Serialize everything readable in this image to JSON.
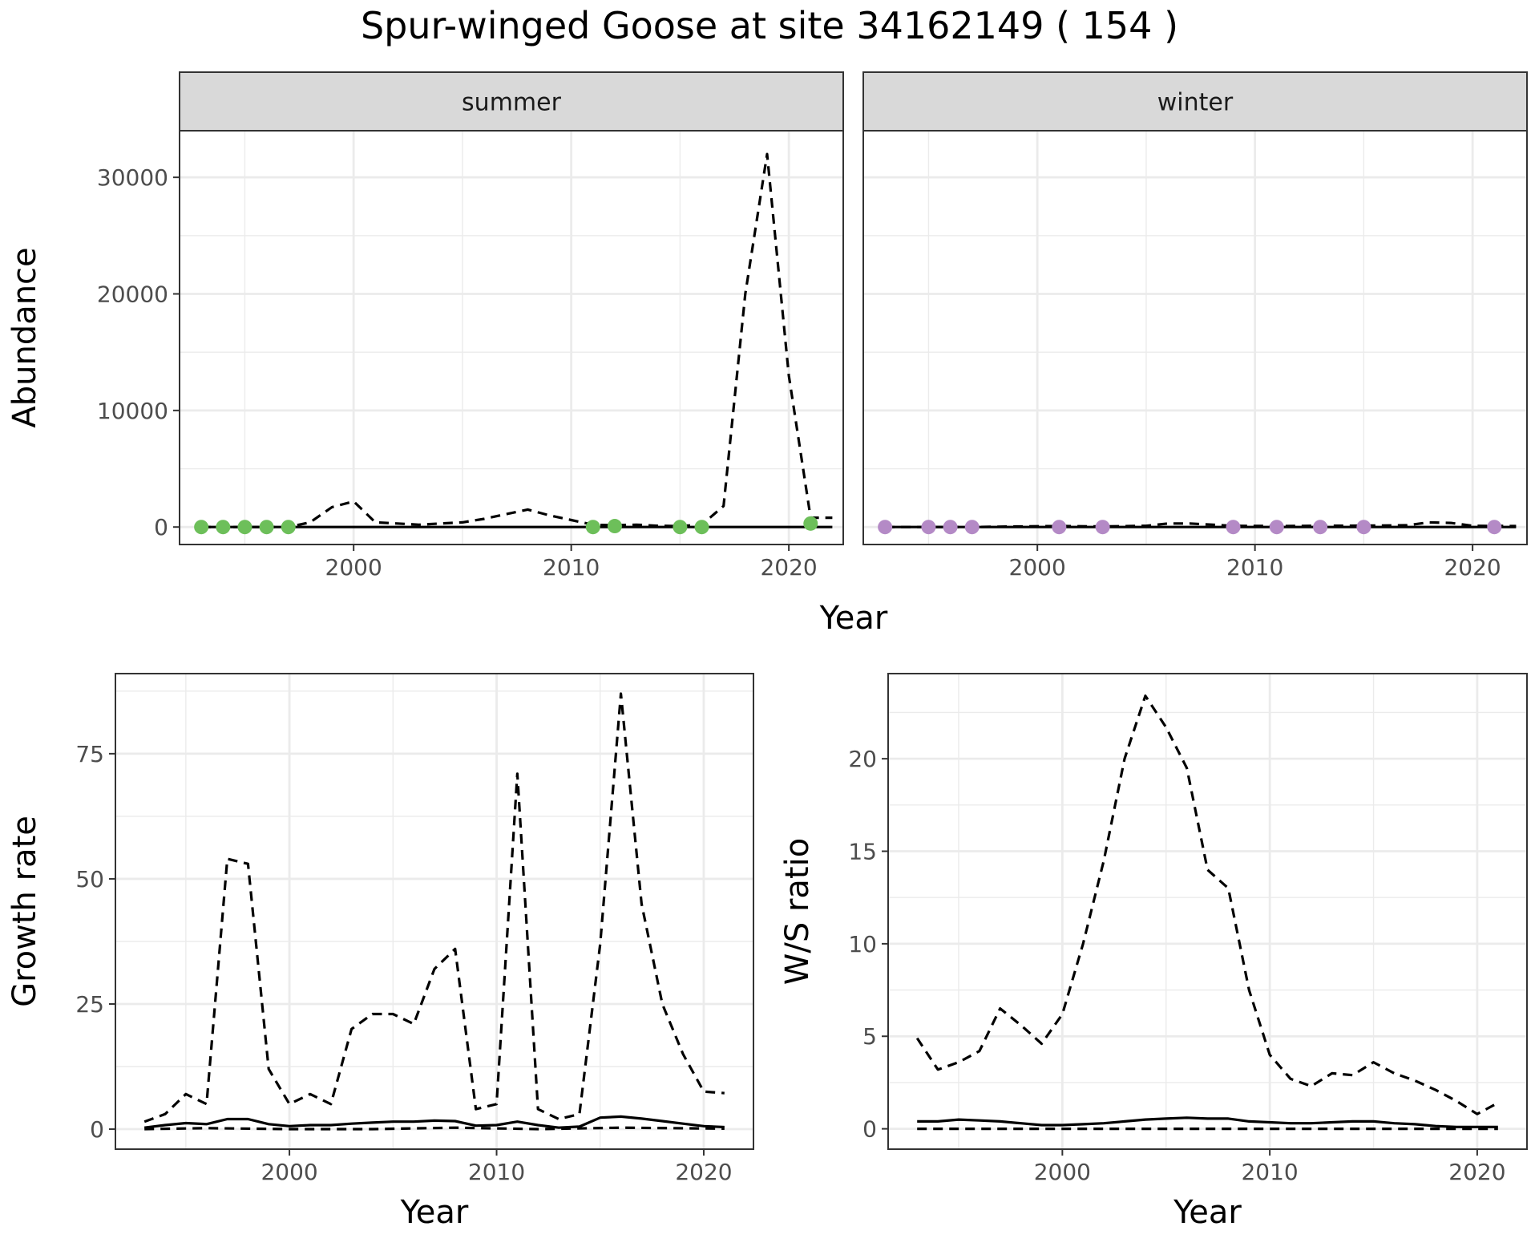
{
  "title": "Spur-winged Goose at site 34162149 ( 154 )",
  "colors": {
    "summer_points": "#6dbf5a",
    "winter_points": "#b48ac6",
    "line": "#000000",
    "strip_fill": "#d9d9d9",
    "grid": "#ebebeb"
  },
  "chart_data": [
    {
      "type": "line",
      "facet": "summer",
      "xlabel": "Year",
      "ylabel": "Abundance",
      "xlim": [
        1992,
        2022.5
      ],
      "ylim": [
        -1500,
        34000
      ],
      "x_ticks": [
        2000,
        2010,
        2020
      ],
      "y_ticks": [
        0,
        10000,
        20000,
        30000
      ],
      "grid": true,
      "series": [
        {
          "style": "dashed",
          "x": [
            1993,
            1994,
            1995,
            1996,
            1997,
            1998,
            1999,
            2000,
            2001,
            2002,
            2003,
            2004,
            2005,
            2006,
            2007,
            2008,
            2009,
            2010,
            2011,
            2012,
            2013,
            2014,
            2015,
            2016,
            2017,
            2018,
            2019,
            2020,
            2021,
            2022
          ],
          "y": [
            0,
            0,
            0,
            0,
            0,
            400,
            1700,
            2200,
            400,
            300,
            200,
            300,
            400,
            700,
            1100,
            1500,
            1000,
            600,
            200,
            150,
            200,
            100,
            80,
            200,
            1800,
            20000,
            32000,
            13000,
            800,
            800
          ]
        },
        {
          "style": "solid",
          "x": [
            1993,
            2022
          ],
          "y": [
            0,
            0
          ]
        }
      ],
      "points": {
        "x": [
          1993,
          1994,
          1995,
          1996,
          1997,
          2011,
          2012,
          2015,
          2016,
          2021
        ],
        "y": [
          0,
          0,
          0,
          0,
          0,
          0,
          80,
          0,
          0,
          300
        ]
      }
    },
    {
      "type": "line",
      "facet": "winter",
      "xlabel": "Year",
      "ylabel": "Abundance",
      "xlim": [
        1992,
        2022.5
      ],
      "ylim": [
        -1500,
        34000
      ],
      "x_ticks": [
        2000,
        2010,
        2020
      ],
      "y_ticks": [
        0,
        10000,
        20000,
        30000
      ],
      "grid": true,
      "series": [
        {
          "style": "dashed",
          "x": [
            1993,
            1995,
            1997,
            1999,
            2001,
            2003,
            2005,
            2006,
            2007,
            2009,
            2011,
            2013,
            2015,
            2017,
            2018,
            2019,
            2020,
            2022
          ],
          "y": [
            0,
            0,
            0,
            50,
            80,
            50,
            100,
            300,
            300,
            100,
            80,
            100,
            120,
            150,
            400,
            350,
            100,
            80
          ]
        },
        {
          "style": "solid",
          "x": [
            1993,
            2022
          ],
          "y": [
            0,
            0
          ]
        }
      ],
      "points": {
        "x": [
          1993,
          1995,
          1996,
          1997,
          2001,
          2003,
          2009,
          2011,
          2013,
          2015,
          2021
        ],
        "y": [
          0,
          0,
          0,
          0,
          0,
          0,
          0,
          0,
          0,
          0,
          0
        ]
      }
    },
    {
      "type": "line",
      "xlabel": "Year",
      "ylabel": "Growth rate",
      "xlim": [
        1991.6,
        2022.4
      ],
      "ylim": [
        -4,
        91
      ],
      "x_ticks": [
        2000,
        2010,
        2020
      ],
      "y_ticks": [
        0,
        25,
        50,
        75
      ],
      "grid": true,
      "series": [
        {
          "style": "dashed",
          "x": [
            1993,
            1994,
            1995,
            1996,
            1997,
            1998,
            1999,
            2000,
            2001,
            2002,
            2003,
            2004,
            2005,
            2006,
            2007,
            2008,
            2009,
            2010,
            2011,
            2012,
            2013,
            2014,
            2015,
            2016,
            2017,
            2018,
            2019,
            2020,
            2021
          ],
          "y": [
            1.5,
            3,
            7,
            5,
            54,
            53,
            12,
            5,
            7,
            5,
            20,
            23,
            23,
            21,
            32,
            36,
            4,
            5,
            71,
            4,
            2,
            3,
            37,
            87,
            45,
            25,
            15,
            7.5,
            7.2
          ]
        },
        {
          "style": "solid",
          "x": [
            1993,
            1994,
            1995,
            1996,
            1997,
            1998,
            1999,
            2000,
            2001,
            2002,
            2003,
            2004,
            2005,
            2006,
            2007,
            2008,
            2009,
            2010,
            2011,
            2012,
            2013,
            2014,
            2015,
            2016,
            2017,
            2018,
            2019,
            2020,
            2021
          ],
          "y": [
            0.3,
            0.8,
            1.2,
            1,
            2,
            2,
            1,
            0.6,
            0.8,
            0.8,
            1.1,
            1.3,
            1.5,
            1.5,
            1.7,
            1.6,
            0.7,
            0.8,
            1.5,
            0.8,
            0.3,
            0.5,
            2.3,
            2.5,
            2.1,
            1.6,
            1.1,
            0.6,
            0.4
          ]
        },
        {
          "style": "dashed",
          "x": [
            1993,
            1996,
            2000,
            2004,
            2008,
            2012,
            2016,
            2021
          ],
          "y": [
            0,
            0.2,
            0,
            0,
            0.3,
            0,
            0.3,
            0.1
          ]
        }
      ]
    },
    {
      "type": "line",
      "xlabel": "Year",
      "ylabel": "W/S ratio",
      "xlim": [
        1991.6,
        2022.4
      ],
      "ylim": [
        -1.1,
        24.6
      ],
      "x_ticks": [
        2000,
        2010,
        2020
      ],
      "y_ticks": [
        0,
        5,
        10,
        15,
        20
      ],
      "grid": true,
      "series": [
        {
          "style": "dashed",
          "x": [
            1993,
            1994,
            1995,
            1996,
            1997,
            1998,
            1999,
            2000,
            2001,
            2002,
            2003,
            2004,
            2005,
            2006,
            2007,
            2008,
            2009,
            2010,
            2011,
            2012,
            2013,
            2014,
            2015,
            2016,
            2017,
            2018,
            2019,
            2020,
            2021
          ],
          "y": [
            4.9,
            3.2,
            3.6,
            4.2,
            6.5,
            5.6,
            4.6,
            6.2,
            10,
            14.5,
            20,
            23.4,
            21.7,
            19.5,
            14,
            13,
            7.5,
            4,
            2.7,
            2.3,
            3,
            2.9,
            3.6,
            3,
            2.6,
            2.1,
            1.5,
            0.8,
            1.4
          ]
        },
        {
          "style": "solid",
          "x": [
            1993,
            1994,
            1995,
            1996,
            1997,
            1998,
            1999,
            2000,
            2001,
            2002,
            2003,
            2004,
            2005,
            2006,
            2007,
            2008,
            2009,
            2010,
            2011,
            2012,
            2013,
            2014,
            2015,
            2016,
            2017,
            2018,
            2019,
            2020,
            2021
          ],
          "y": [
            0.4,
            0.4,
            0.5,
            0.45,
            0.4,
            0.3,
            0.2,
            0.2,
            0.25,
            0.3,
            0.4,
            0.5,
            0.55,
            0.6,
            0.55,
            0.55,
            0.4,
            0.35,
            0.3,
            0.3,
            0.35,
            0.4,
            0.4,
            0.3,
            0.25,
            0.15,
            0.1,
            0.1,
            0.1
          ]
        },
        {
          "style": "dashed",
          "x": [
            1993,
            2000,
            2010,
            2021
          ],
          "y": [
            0,
            0,
            0,
            0
          ]
        }
      ]
    }
  ]
}
